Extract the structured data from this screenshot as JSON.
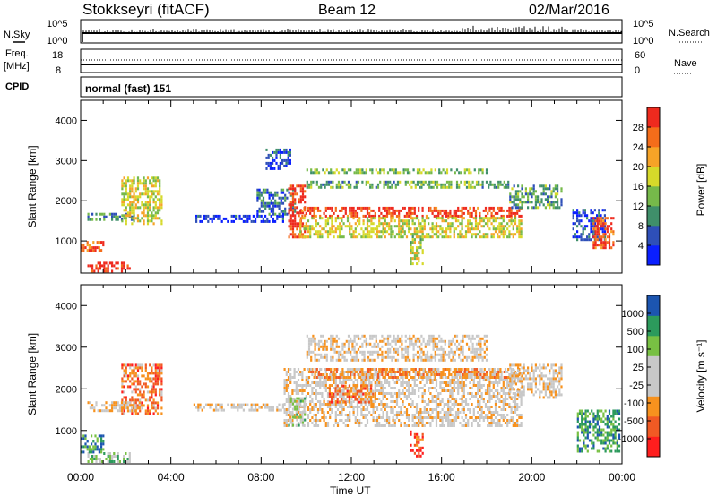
{
  "header": {
    "station": "Stokkseyri (fitACF)",
    "beam": "Beam 12",
    "date": "02/Mar/2016"
  },
  "top_panels": {
    "nsky_label": "N.Sky",
    "nsky_ticks": [
      "10^5",
      "10^0"
    ],
    "nsearch_label": "N.Search",
    "nsearch_ticks": [
      "10^5",
      "10^0"
    ],
    "freq_label": "Freq.",
    "freq_unit": "[MHz]",
    "freq_ticks": [
      "18",
      "8"
    ],
    "nave_label": "Nave",
    "nave_ticks": [
      "60",
      "0"
    ],
    "cpid_label": "CPID",
    "cpid_value": "normal (fast) 151"
  },
  "colors": {
    "power_scale": [
      "#0a1fff",
      "#2e4fb8",
      "#3f8f6a",
      "#76b94a",
      "#d6d92a",
      "#f6a327",
      "#f46d1a",
      "#ee2a1e"
    ],
    "velocity_scale": [
      "#ff1e1e",
      "#f15a24",
      "#f7921e",
      "#c8c8c8",
      "#c8c8c8",
      "#78c043",
      "#2c9a5c",
      "#1c55b0"
    ],
    "ground_gray": "#c8c8c8"
  },
  "chart_data": [
    {
      "type": "heatmap",
      "name": "power",
      "ylabel": "Slant Range [km]",
      "yticks": [
        "1000",
        "2000",
        "3000",
        "4000"
      ],
      "ylim": [
        200,
        4500
      ],
      "xlim": [
        0,
        24
      ],
      "xticks": [
        "00:00",
        "04:00",
        "08:00",
        "12:00",
        "16:00",
        "20:00",
        "00:00"
      ],
      "colorbar": {
        "label": "Power [dB]",
        "ticks": [
          "28",
          "24",
          "20",
          "16",
          "12",
          "8",
          "4"
        ]
      },
      "regions": [
        {
          "t0": 0.3,
          "t1": 2.2,
          "r0": 270,
          "r1": 480,
          "level": 0.95
        },
        {
          "t0": 0.0,
          "t1": 1.0,
          "r0": 750,
          "r1": 1000,
          "level": 0.85
        },
        {
          "t0": 0.3,
          "t1": 2.6,
          "r0": 1500,
          "r1": 1700,
          "level": 0.3
        },
        {
          "t0": 1.8,
          "t1": 3.6,
          "r0": 1400,
          "r1": 2600,
          "level": 0.55
        },
        {
          "t0": 5.0,
          "t1": 9.0,
          "r0": 1500,
          "r1": 1650,
          "level": 0.1
        },
        {
          "t0": 7.8,
          "t1": 9.5,
          "r0": 1650,
          "r1": 2300,
          "level": 0.25
        },
        {
          "t0": 9.2,
          "t1": 9.9,
          "r0": 1100,
          "r1": 2400,
          "level": 0.95
        },
        {
          "t0": 9.7,
          "t1": 19.5,
          "r0": 1600,
          "r1": 1850,
          "level": 0.9
        },
        {
          "t0": 9.7,
          "t1": 19.5,
          "r0": 1100,
          "r1": 1600,
          "level": 0.55
        },
        {
          "t0": 10.0,
          "t1": 19.0,
          "r0": 2300,
          "r1": 2500,
          "level": 0.4
        },
        {
          "t0": 10.0,
          "t1": 18.0,
          "r0": 2700,
          "r1": 2800,
          "level": 0.45
        },
        {
          "t0": 8.2,
          "t1": 9.3,
          "r0": 2800,
          "r1": 3300,
          "level": 0.15
        },
        {
          "t0": 19.0,
          "t1": 21.3,
          "r0": 1800,
          "r1": 2400,
          "level": 0.35
        },
        {
          "t0": 21.8,
          "t1": 23.2,
          "r0": 1000,
          "r1": 1800,
          "level": 0.15
        },
        {
          "t0": 22.7,
          "t1": 23.6,
          "r0": 800,
          "r1": 1600,
          "level": 0.9
        },
        {
          "t0": 14.6,
          "t1": 15.2,
          "r0": 400,
          "r1": 1200,
          "level": 0.5
        }
      ]
    },
    {
      "type": "heatmap",
      "name": "velocity",
      "ylabel": "Slant Range [km]",
      "yticks": [
        "1000",
        "2000",
        "3000",
        "4000"
      ],
      "ylim": [
        200,
        4500
      ],
      "xlim": [
        0,
        24
      ],
      "xticks": [
        "00:00",
        "04:00",
        "08:00",
        "12:00",
        "16:00",
        "20:00",
        "00:00"
      ],
      "xlabel": "Time UT",
      "colorbar": {
        "label": "Velocity [m s⁻¹]",
        "ticks": [
          "1000",
          "500",
          "100",
          "25",
          "-25",
          "-100",
          "-500",
          "-1000"
        ]
      },
      "regions": [
        {
          "t0": 0.3,
          "t1": 2.2,
          "r0": 270,
          "r1": 480,
          "level": 0.65
        },
        {
          "t0": 0.0,
          "t1": 1.0,
          "r0": 500,
          "r1": 900,
          "level": 0.85
        },
        {
          "t0": 1.8,
          "t1": 3.6,
          "r0": 1400,
          "r1": 2600,
          "level": 0.25
        },
        {
          "t0": 0.3,
          "t1": 2.6,
          "r0": 1500,
          "r1": 1700,
          "level": 0.45
        },
        {
          "t0": 5.0,
          "t1": 9.0,
          "r0": 1500,
          "r1": 1650,
          "level": 0.45
        },
        {
          "t0": 9.0,
          "t1": 19.5,
          "r0": 1100,
          "r1": 2500,
          "level": 0.45
        },
        {
          "t0": 9.2,
          "t1": 9.9,
          "r0": 1100,
          "r1": 1800,
          "level": 0.6
        },
        {
          "t0": 11.0,
          "t1": 13.0,
          "r0": 1700,
          "r1": 2100,
          "level": 0.25
        },
        {
          "t0": 10.0,
          "t1": 19.0,
          "r0": 2300,
          "r1": 2500,
          "level": 0.3
        },
        {
          "t0": 10.0,
          "t1": 18.0,
          "r0": 2700,
          "r1": 3300,
          "level": 0.45
        },
        {
          "t0": 19.0,
          "t1": 21.3,
          "r0": 1800,
          "r1": 2600,
          "level": 0.45
        },
        {
          "t0": 22.0,
          "t1": 23.9,
          "r0": 500,
          "r1": 1500,
          "level": 0.8
        },
        {
          "t0": 14.6,
          "t1": 15.2,
          "r0": 400,
          "r1": 1000,
          "level": 0.15
        }
      ]
    }
  ]
}
